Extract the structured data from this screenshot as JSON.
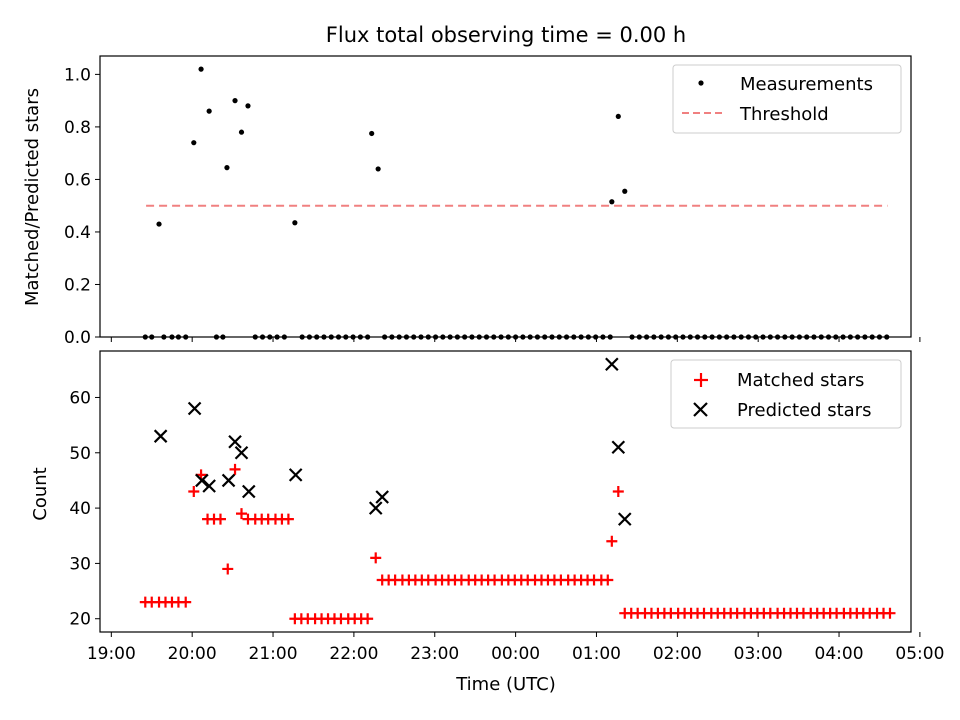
{
  "chart_data": [
    {
      "type": "scatter",
      "title": "Flux total observing time = 0.00 h",
      "xlabel": "",
      "ylabel": "Matched/Predicted stars",
      "x_unit": "hours since 19:00 UTC",
      "xlim": [
        -0.14,
        9.89
      ],
      "ylim": [
        0.0,
        1.07
      ],
      "yticks": [
        "0.0",
        "0.2",
        "0.4",
        "0.6",
        "0.8",
        "1.0"
      ],
      "show_xtick_labels": false,
      "grid": false,
      "legend": "top-right",
      "series": [
        {
          "name": "Measurements",
          "kind": "scatter",
          "marker": "dot",
          "color": "#000000",
          "points": [
            [
              0.42,
              0.0
            ],
            [
              0.5,
              0.0
            ],
            [
              0.65,
              0.0
            ],
            [
              0.75,
              0.0
            ],
            [
              0.83,
              0.0
            ],
            [
              0.92,
              0.0
            ],
            [
              0.59,
              0.43
            ],
            [
              1.02,
              0.74
            ],
            [
              1.11,
              1.02
            ],
            [
              1.21,
              0.86
            ],
            [
              1.3,
              0.0
            ],
            [
              1.38,
              0.0
            ],
            [
              1.43,
              0.645
            ],
            [
              1.53,
              0.9
            ],
            [
              1.61,
              0.78
            ],
            [
              1.69,
              0.88
            ],
            [
              1.78,
              0.0
            ],
            [
              1.87,
              0.0
            ],
            [
              1.96,
              0.0
            ],
            [
              2.05,
              0.0
            ],
            [
              2.14,
              0.0
            ],
            [
              2.27,
              0.435
            ],
            [
              2.36,
              0.0
            ],
            [
              2.45,
              0.0
            ],
            [
              2.54,
              0.0
            ],
            [
              2.63,
              0.0
            ],
            [
              2.72,
              0.0
            ],
            [
              2.81,
              0.0
            ],
            [
              2.9,
              0.0
            ],
            [
              2.99,
              0.0
            ],
            [
              3.08,
              0.0
            ],
            [
              3.17,
              0.0
            ],
            [
              3.22,
              0.775
            ],
            [
              3.3,
              0.64
            ],
            [
              3.38,
              0.0
            ],
            [
              3.47,
              0.0
            ],
            [
              3.56,
              0.0
            ],
            [
              3.65,
              0.0
            ],
            [
              3.74,
              0.0
            ],
            [
              3.83,
              0.0
            ],
            [
              3.92,
              0.0
            ],
            [
              4.01,
              0.0
            ],
            [
              4.1,
              0.0
            ],
            [
              4.19,
              0.0
            ],
            [
              4.28,
              0.0
            ],
            [
              4.37,
              0.0
            ],
            [
              4.46,
              0.0
            ],
            [
              4.55,
              0.0
            ],
            [
              4.64,
              0.0
            ],
            [
              4.73,
              0.0
            ],
            [
              4.82,
              0.0
            ],
            [
              4.91,
              0.0
            ],
            [
              5.0,
              0.0
            ],
            [
              5.09,
              0.0
            ],
            [
              5.18,
              0.0
            ],
            [
              5.27,
              0.0
            ],
            [
              5.36,
              0.0
            ],
            [
              5.45,
              0.0
            ],
            [
              5.54,
              0.0
            ],
            [
              5.63,
              0.0
            ],
            [
              5.72,
              0.0
            ],
            [
              5.81,
              0.0
            ],
            [
              5.9,
              0.0
            ],
            [
              5.99,
              0.0
            ],
            [
              6.08,
              0.0
            ],
            [
              6.17,
              0.0
            ],
            [
              6.19,
              0.515
            ],
            [
              6.27,
              0.84
            ],
            [
              6.35,
              0.555
            ],
            [
              6.44,
              0.0
            ],
            [
              6.53,
              0.0
            ],
            [
              6.62,
              0.0
            ],
            [
              6.71,
              0.0
            ],
            [
              6.8,
              0.0
            ],
            [
              6.89,
              0.0
            ],
            [
              6.98,
              0.0
            ],
            [
              7.07,
              0.0
            ],
            [
              7.16,
              0.0
            ],
            [
              7.25,
              0.0
            ],
            [
              7.34,
              0.0
            ],
            [
              7.43,
              0.0
            ],
            [
              7.52,
              0.0
            ],
            [
              7.61,
              0.0
            ],
            [
              7.7,
              0.0
            ],
            [
              7.79,
              0.0
            ],
            [
              7.88,
              0.0
            ],
            [
              7.97,
              0.0
            ],
            [
              8.06,
              0.0
            ],
            [
              8.15,
              0.0
            ],
            [
              8.24,
              0.0
            ],
            [
              8.33,
              0.0
            ],
            [
              8.42,
              0.0
            ],
            [
              8.51,
              0.0
            ],
            [
              8.6,
              0.0
            ],
            [
              8.69,
              0.0
            ],
            [
              8.78,
              0.0
            ],
            [
              8.87,
              0.0
            ],
            [
              8.96,
              0.0
            ],
            [
              9.05,
              0.0
            ],
            [
              9.14,
              0.0
            ],
            [
              9.23,
              0.0
            ],
            [
              9.32,
              0.0
            ],
            [
              9.41,
              0.0
            ],
            [
              9.5,
              0.0
            ],
            [
              9.59,
              0.0
            ]
          ]
        },
        {
          "name": "Threshold",
          "kind": "line",
          "style": "dashed",
          "color": "#f08080",
          "points": [
            [
              0.43,
              0.5
            ],
            [
              9.6,
              0.5
            ]
          ]
        }
      ]
    },
    {
      "type": "scatter",
      "title": "",
      "xlabel": "Time (UTC)",
      "ylabel": "Count",
      "x_unit": "hours since 19:00 UTC",
      "xlim": [
        -0.14,
        9.89
      ],
      "ylim": [
        17.6,
        68.4
      ],
      "xticks": [
        "19:00",
        "20:00",
        "21:00",
        "22:00",
        "23:00",
        "00:00",
        "01:00",
        "02:00",
        "03:00",
        "04:00",
        "05:00"
      ],
      "yticks": [
        "20",
        "30",
        "40",
        "50",
        "60"
      ],
      "grid": false,
      "legend": "top-right",
      "series": [
        {
          "name": "Matched stars",
          "kind": "scatter",
          "marker": "plus",
          "color": "#ff0000",
          "points": [
            [
              0.42,
              23
            ],
            [
              0.5,
              23
            ],
            [
              0.59,
              23
            ],
            [
              0.67,
              23
            ],
            [
              0.75,
              23
            ],
            [
              0.83,
              23
            ],
            [
              0.92,
              23
            ],
            [
              1.02,
              43
            ],
            [
              1.11,
              46
            ],
            [
              1.19,
              38
            ],
            [
              1.27,
              38
            ],
            [
              1.35,
              38
            ],
            [
              1.44,
              29
            ],
            [
              1.53,
              47
            ],
            [
              1.61,
              39
            ],
            [
              1.69,
              38
            ],
            [
              1.78,
              38
            ],
            [
              1.86,
              38
            ],
            [
              1.94,
              38
            ],
            [
              2.03,
              38
            ],
            [
              2.11,
              38
            ],
            [
              2.19,
              38
            ],
            [
              2.27,
              20
            ],
            [
              2.35,
              20
            ],
            [
              2.43,
              20
            ],
            [
              2.52,
              20
            ],
            [
              2.6,
              20
            ],
            [
              2.68,
              20
            ],
            [
              2.76,
              20
            ],
            [
              2.84,
              20
            ],
            [
              2.93,
              20
            ],
            [
              3.01,
              20
            ],
            [
              3.09,
              20
            ],
            [
              3.17,
              20
            ],
            [
              3.27,
              31
            ],
            [
              3.35,
              27
            ],
            [
              3.43,
              27
            ],
            [
              3.51,
              27
            ],
            [
              3.6,
              27
            ],
            [
              3.68,
              27
            ],
            [
              3.76,
              27
            ],
            [
              3.84,
              27
            ],
            [
              3.92,
              27
            ],
            [
              4.01,
              27
            ],
            [
              4.09,
              27
            ],
            [
              4.17,
              27
            ],
            [
              4.25,
              27
            ],
            [
              4.33,
              27
            ],
            [
              4.42,
              27
            ],
            [
              4.5,
              27
            ],
            [
              4.58,
              27
            ],
            [
              4.66,
              27
            ],
            [
              4.74,
              27
            ],
            [
              4.83,
              27
            ],
            [
              4.91,
              27
            ],
            [
              4.99,
              27
            ],
            [
              5.07,
              27
            ],
            [
              5.15,
              27
            ],
            [
              5.24,
              27
            ],
            [
              5.32,
              27
            ],
            [
              5.4,
              27
            ],
            [
              5.48,
              27
            ],
            [
              5.56,
              27
            ],
            [
              5.65,
              27
            ],
            [
              5.73,
              27
            ],
            [
              5.81,
              27
            ],
            [
              5.89,
              27
            ],
            [
              5.97,
              27
            ],
            [
              6.06,
              27
            ],
            [
              6.14,
              27
            ],
            [
              6.19,
              34
            ],
            [
              6.27,
              43
            ],
            [
              6.35,
              21
            ],
            [
              6.43,
              21
            ],
            [
              6.51,
              21
            ],
            [
              6.6,
              21
            ],
            [
              6.68,
              21
            ],
            [
              6.76,
              21
            ],
            [
              6.84,
              21
            ],
            [
              6.92,
              21
            ],
            [
              7.01,
              21
            ],
            [
              7.09,
              21
            ],
            [
              7.17,
              21
            ],
            [
              7.25,
              21
            ],
            [
              7.33,
              21
            ],
            [
              7.42,
              21
            ],
            [
              7.5,
              21
            ],
            [
              7.58,
              21
            ],
            [
              7.66,
              21
            ],
            [
              7.74,
              21
            ],
            [
              7.83,
              21
            ],
            [
              7.91,
              21
            ],
            [
              7.99,
              21
            ],
            [
              8.07,
              21
            ],
            [
              8.15,
              21
            ],
            [
              8.24,
              21
            ],
            [
              8.32,
              21
            ],
            [
              8.4,
              21
            ],
            [
              8.48,
              21
            ],
            [
              8.56,
              21
            ],
            [
              8.65,
              21
            ],
            [
              8.73,
              21
            ],
            [
              8.81,
              21
            ],
            [
              8.89,
              21
            ],
            [
              8.97,
              21
            ],
            [
              9.06,
              21
            ],
            [
              9.14,
              21
            ],
            [
              9.22,
              21
            ],
            [
              9.3,
              21
            ],
            [
              9.38,
              21
            ],
            [
              9.47,
              21
            ],
            [
              9.55,
              21
            ],
            [
              9.63,
              21
            ]
          ]
        },
        {
          "name": "Predicted stars",
          "kind": "scatter",
          "marker": "x",
          "color": "#000000",
          "points": [
            [
              0.61,
              53
            ],
            [
              1.03,
              58
            ],
            [
              1.12,
              45
            ],
            [
              1.21,
              44
            ],
            [
              1.45,
              45
            ],
            [
              1.53,
              52
            ],
            [
              1.61,
              50
            ],
            [
              1.7,
              43
            ],
            [
              2.28,
              46
            ],
            [
              3.27,
              40
            ],
            [
              3.35,
              42
            ],
            [
              6.19,
              66
            ],
            [
              6.27,
              51
            ],
            [
              6.35,
              38
            ]
          ]
        }
      ]
    }
  ]
}
